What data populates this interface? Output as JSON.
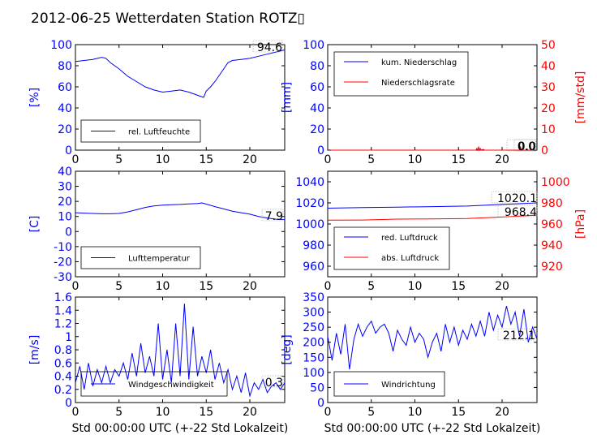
{
  "title": "2012-06-25 Wetterdaten Station ROTZ▯",
  "xlabel": "Std 00:00:00 UTC (+-22 Std Lokalzeit)",
  "colors": {
    "primary": "#0000ff",
    "secondary": "#ff0000",
    "frame": "#000000"
  },
  "chart_data": [
    {
      "type": "line",
      "ylabel": "[%]",
      "xlim": [
        0,
        24
      ],
      "ylim": [
        0,
        100
      ],
      "x_ticks": [
        0,
        5,
        10,
        15,
        20
      ],
      "y_ticks": [
        0,
        20,
        40,
        60,
        80,
        100
      ],
      "legend": {
        "position": "lower-left",
        "entries": [
          "rel. Luftfeuchte"
        ]
      },
      "last_value": "94.6",
      "series": [
        {
          "name": "rel. Luftfeuchte",
          "axis": "left",
          "color": "#0000ff",
          "x": [
            0,
            1,
            2,
            3,
            3.5,
            4,
            5,
            6,
            7,
            8,
            9,
            10,
            11,
            12,
            13,
            14,
            14.7,
            15,
            15.5,
            16,
            17,
            17.5,
            18,
            19,
            20,
            21,
            22,
            23,
            24
          ],
          "y": [
            84,
            85,
            86,
            88,
            87,
            83,
            77,
            70,
            65,
            60,
            57,
            55,
            56,
            57,
            55,
            52,
            50,
            56,
            60,
            65,
            77,
            83,
            85,
            86,
            87,
            89,
            91,
            93,
            95
          ]
        }
      ]
    },
    {
      "type": "line",
      "ylabel": "[mm]",
      "ylabel_right": "[mm/std]",
      "xlim": [
        0,
        24
      ],
      "ylim": [
        0,
        100
      ],
      "ylim_right": [
        0,
        50
      ],
      "x_ticks": [
        0,
        5,
        10,
        15,
        20
      ],
      "y_ticks": [
        0,
        20,
        40,
        60,
        80,
        100
      ],
      "y_ticks_right": [
        0,
        10,
        20,
        30,
        40,
        50
      ],
      "legend": {
        "position": "upper-left",
        "entries": [
          "kum. Niederschlag",
          "Niederschlagsrate"
        ]
      },
      "last_value": "0.0",
      "last_value_2": "0.0",
      "series": [
        {
          "name": "kum. Niederschlag",
          "axis": "left",
          "color": "#0000ff",
          "x": [
            0,
            24
          ],
          "y": [
            0,
            0
          ]
        },
        {
          "name": "Niederschlagsrate",
          "axis": "right",
          "color": "#ff0000",
          "x": [
            0,
            17,
            17.1,
            17.2,
            17.3,
            17.4,
            17.5,
            17.6,
            17.8,
            18,
            22,
            22.1,
            22.2,
            24
          ],
          "y": [
            0,
            0,
            0.8,
            0,
            1.6,
            0,
            0.8,
            0,
            0.4,
            0,
            0,
            1.8,
            0,
            0
          ]
        }
      ]
    },
    {
      "type": "line",
      "ylabel": "[C]",
      "xlim": [
        0,
        24
      ],
      "ylim": [
        -30,
        40
      ],
      "x_ticks": [
        0,
        5,
        10,
        15,
        20
      ],
      "y_ticks": [
        -30,
        -20,
        -10,
        0,
        10,
        20,
        30,
        40
      ],
      "legend": {
        "position": "lower-left",
        "entries": [
          "Lufttemperatur"
        ]
      },
      "last_value": "7.9",
      "series": [
        {
          "name": "Lufttemperatur",
          "axis": "left",
          "color": "#0000ff",
          "x": [
            0,
            1,
            2,
            3,
            4,
            5,
            6,
            7,
            8,
            9,
            10,
            11,
            12,
            13,
            14,
            14.5,
            15,
            16,
            17,
            18,
            19,
            20,
            21,
            22,
            23,
            24
          ],
          "y": [
            12.5,
            12.2,
            12,
            11.8,
            11.8,
            12,
            13,
            14.5,
            16,
            17,
            17.5,
            17.8,
            18,
            18.3,
            18.6,
            19,
            18.2,
            16.5,
            15,
            13.5,
            12.5,
            11.5,
            10,
            9,
            8.2,
            7.9
          ]
        }
      ]
    },
    {
      "type": "line",
      "ylabel_right": "[hPa]",
      "xlim": [
        0,
        24
      ],
      "ylim": [
        950,
        1050
      ],
      "ylim_right": [
        910,
        1010
      ],
      "x_ticks": [
        0,
        5,
        10,
        15,
        20
      ],
      "y_ticks": [
        960,
        980,
        1000,
        1020,
        1040
      ],
      "y_ticks_right": [
        920,
        940,
        960,
        980,
        1000
      ],
      "legend": {
        "position": "lower-left",
        "entries": [
          "red. Luftdruck",
          "abs. Luftdruck"
        ]
      },
      "last_value": "1020.1",
      "last_value_2": "968.4",
      "series": [
        {
          "name": "red. Luftdruck",
          "axis": "left",
          "color": "#0000ff",
          "x": [
            0,
            4,
            8,
            12,
            16,
            20,
            24
          ],
          "y": [
            1015,
            1015.5,
            1016,
            1016.5,
            1017,
            1018.5,
            1020
          ]
        },
        {
          "name": "abs. Luftdruck",
          "axis": "right",
          "color": "#ff0000",
          "x": [
            0,
            4,
            8,
            12,
            16,
            20,
            24
          ],
          "y": [
            963.6,
            963.8,
            964.6,
            964.8,
            965.2,
            966.6,
            968.4
          ]
        }
      ]
    },
    {
      "type": "line",
      "ylabel": "[m/s]",
      "xlim": [
        0,
        24
      ],
      "ylim": [
        0,
        1.6
      ],
      "x_ticks": [
        0,
        5,
        10,
        15,
        20
      ],
      "y_ticks": [
        0,
        0.2,
        0.4,
        0.6,
        0.8,
        1.0,
        1.2,
        1.4,
        1.6
      ],
      "legend": {
        "position": "lower-left",
        "entries": [
          "Windgeschwindigkeit"
        ]
      },
      "last_value": "0.3",
      "series": [
        {
          "name": "Windgeschwindigkeit",
          "axis": "left",
          "color": "#0000ff",
          "x": [
            0,
            0.5,
            1,
            1.5,
            2,
            2.5,
            3,
            3.5,
            4,
            4.5,
            5,
            5.5,
            6,
            6.5,
            7,
            7.5,
            8,
            8.5,
            9,
            9.5,
            10,
            10.5,
            11,
            11.5,
            12,
            12.5,
            13,
            13.5,
            14,
            14.5,
            15,
            15.5,
            16,
            16.5,
            17,
            17.5,
            18,
            18.5,
            19,
            19.5,
            20,
            20.5,
            21,
            21.5,
            22,
            22.5,
            23,
            23.5,
            24
          ],
          "y": [
            0.3,
            0.55,
            0.2,
            0.6,
            0.25,
            0.5,
            0.3,
            0.55,
            0.3,
            0.5,
            0.4,
            0.6,
            0.35,
            0.75,
            0.4,
            0.9,
            0.45,
            0.7,
            0.4,
            1.2,
            0.35,
            0.8,
            0.3,
            1.2,
            0.4,
            1.5,
            0.35,
            1.15,
            0.4,
            0.7,
            0.45,
            0.8,
            0.35,
            0.6,
            0.3,
            0.5,
            0.2,
            0.4,
            0.15,
            0.45,
            0.1,
            0.3,
            0.2,
            0.35,
            0.15,
            0.25,
            0.3,
            0.2,
            0.3
          ]
        }
      ]
    },
    {
      "type": "line",
      "ylabel": "[deg]",
      "xlim": [
        0,
        24
      ],
      "ylim": [
        0,
        350
      ],
      "x_ticks": [
        0,
        5,
        10,
        15,
        20
      ],
      "y_ticks": [
        0,
        50,
        100,
        150,
        200,
        250,
        300,
        350
      ],
      "legend": {
        "position": "lower-left",
        "entries": [
          "Windrichtung"
        ]
      },
      "last_value": "212.1",
      "series": [
        {
          "name": "Windrichtung",
          "axis": "left",
          "color": "#0000ff",
          "x": [
            0,
            0.5,
            1,
            1.5,
            2,
            2.5,
            3,
            3.5,
            4,
            4.5,
            5,
            5.5,
            6,
            6.5,
            7,
            7.5,
            8,
            8.5,
            9,
            9.5,
            10,
            10.5,
            11,
            11.5,
            12,
            12.5,
            13,
            13.5,
            14,
            14.5,
            15,
            15.5,
            16,
            16.5,
            17,
            17.5,
            18,
            18.5,
            19,
            19.5,
            20,
            20.5,
            21,
            21.5,
            22,
            22.5,
            23,
            23.5,
            24
          ],
          "y": [
            220,
            140,
            230,
            160,
            260,
            110,
            210,
            260,
            220,
            250,
            270,
            230,
            250,
            260,
            230,
            170,
            240,
            210,
            190,
            250,
            200,
            230,
            210,
            150,
            200,
            230,
            170,
            260,
            200,
            250,
            190,
            240,
            210,
            260,
            220,
            270,
            220,
            300,
            240,
            290,
            250,
            320,
            260,
            300,
            220,
            310,
            200,
            250,
            212
          ]
        }
      ]
    }
  ]
}
